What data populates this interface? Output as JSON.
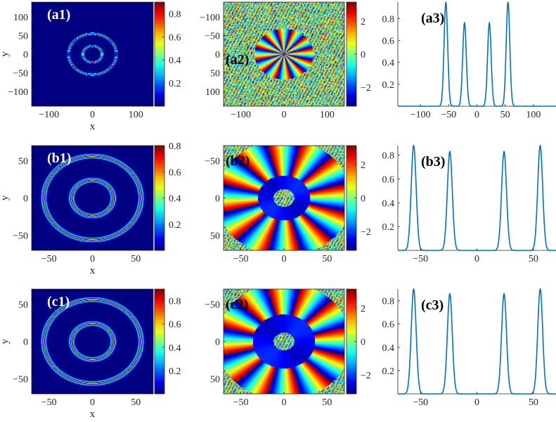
{
  "figure": {
    "rows": [
      "a",
      "b",
      "c"
    ]
  },
  "chart_data": [
    {
      "id": "a1",
      "type": "heatmap",
      "label": "(a1)",
      "xlabel": "x",
      "ylabel": "y",
      "xlim": [
        -140,
        140
      ],
      "ylim": [
        -140,
        140
      ],
      "y_reversed": false,
      "xticks": [
        -100,
        0,
        100
      ],
      "yticks": [
        100,
        50,
        0,
        -50,
        -100
      ],
      "colorbar": {
        "range": [
          0,
          0.9
        ],
        "ticks": [
          0.2,
          0.4,
          0.6,
          0.8
        ]
      },
      "rings": [
        {
          "r": 22,
          "amp": 0.9
        },
        {
          "r": 55,
          "amp": 0.9
        }
      ],
      "grid": false
    },
    {
      "id": "a2",
      "type": "heatmap",
      "label": "(a2)",
      "xlabel": "",
      "ylabel": "",
      "xlim": [
        -140,
        140
      ],
      "ylim": [
        -140,
        140
      ],
      "y_reversed": true,
      "xticks": [
        -100,
        0,
        100
      ],
      "yticks": [
        -100,
        -50,
        0,
        50,
        100
      ],
      "colorbar": {
        "range": [
          -3.14,
          3.14
        ],
        "ticks": [
          2,
          0,
          -2
        ]
      },
      "phase": {
        "sectors": 12,
        "disk_radius": 68,
        "noise": "outside"
      },
      "grid": false
    },
    {
      "id": "a3",
      "type": "line",
      "label": "(a3)",
      "xlabel": "",
      "ylabel": "",
      "xlim": [
        -140,
        140
      ],
      "ylim": [
        0,
        0.95
      ],
      "xticks": [
        -100,
        -50,
        0,
        50,
        100
      ],
      "yticks": [
        0.2,
        0.4,
        0.6,
        0.8
      ],
      "peaks": [
        {
          "x": -55,
          "amp": 0.95
        },
        {
          "x": -22,
          "amp": 0.76
        },
        {
          "x": 22,
          "amp": 0.76
        },
        {
          "x": 55,
          "amp": 0.95
        }
      ],
      "peak_width": 3.2,
      "grid": false
    },
    {
      "id": "b1",
      "type": "heatmap",
      "label": "(b1)",
      "xlabel": "x",
      "ylabel": "y",
      "xlim": [
        -70,
        70
      ],
      "ylim": [
        -70,
        70
      ],
      "y_reversed": false,
      "xticks": [
        -50,
        0,
        50
      ],
      "yticks": [
        50,
        0,
        -50
      ],
      "colorbar": {
        "range": [
          0,
          0.8
        ],
        "ticks": [
          0.2,
          0.4,
          0.6,
          0.8
        ]
      },
      "rings": [
        {
          "r": 24,
          "amp": 0.8
        },
        {
          "r": 56,
          "amp": 0.8
        }
      ],
      "grid": false
    },
    {
      "id": "b2",
      "type": "heatmap",
      "label": "(b2)",
      "xlabel": "",
      "ylabel": "",
      "xlim": [
        -70,
        70
      ],
      "ylim": [
        -70,
        70
      ],
      "y_reversed": true,
      "xticks": [
        -50,
        0,
        50
      ],
      "yticks": [
        -50,
        0,
        50
      ],
      "colorbar": {
        "range": [
          -3.14,
          3.14
        ],
        "ticks": [
          2,
          0,
          -2
        ]
      },
      "phase": {
        "sectors": 12,
        "inner_radius": 30,
        "outer_radius": 78,
        "core_radius": 12,
        "noise": "core"
      },
      "grid": false
    },
    {
      "id": "b3",
      "type": "line",
      "label": "(b3)",
      "xlabel": "",
      "ylabel": "",
      "xlim": [
        -70,
        70
      ],
      "ylim": [
        0,
        0.88
      ],
      "xticks": [
        -50,
        0,
        50
      ],
      "yticks": [
        0.2,
        0.4,
        0.6,
        0.8
      ],
      "peaks": [
        {
          "x": -56,
          "amp": 0.88
        },
        {
          "x": -24,
          "amp": 0.83
        },
        {
          "x": 24,
          "amp": 0.83
        },
        {
          "x": 56,
          "amp": 0.88
        }
      ],
      "peak_width": 2.2,
      "grid": false
    },
    {
      "id": "c1",
      "type": "heatmap",
      "label": "(c1)",
      "xlabel": "x",
      "ylabel": "y",
      "xlim": [
        -70,
        70
      ],
      "ylim": [
        -70,
        70
      ],
      "y_reversed": false,
      "xticks": [
        -50,
        0,
        50
      ],
      "yticks": [
        50,
        0,
        -50
      ],
      "colorbar": {
        "range": [
          0,
          0.9
        ],
        "ticks": [
          0.2,
          0.4,
          0.6,
          0.8
        ]
      },
      "rings": [
        {
          "r": 24,
          "amp": 0.9
        },
        {
          "r": 56,
          "amp": 0.9
        }
      ],
      "grid": false
    },
    {
      "id": "c2",
      "type": "heatmap",
      "label": "(c2)",
      "xlabel": "",
      "ylabel": "",
      "xlim": [
        -70,
        70
      ],
      "ylim": [
        -70,
        70
      ],
      "y_reversed": true,
      "xticks": [
        -50,
        0,
        50
      ],
      "yticks": [
        -50,
        0,
        50
      ],
      "colorbar": {
        "range": [
          -3.14,
          3.14
        ],
        "ticks": [
          2,
          0,
          -2
        ]
      },
      "phase": {
        "sectors": 12,
        "inner_radius": 36,
        "outer_radius": 78,
        "core_radius": 12,
        "noise": "core"
      },
      "grid": false
    },
    {
      "id": "c3",
      "type": "line",
      "label": "(c3)",
      "xlabel": "",
      "ylabel": "",
      "xlim": [
        -70,
        70
      ],
      "ylim": [
        0,
        0.9
      ],
      "xticks": [
        -50,
        0,
        50
      ],
      "yticks": [
        0.2,
        0.4,
        0.6,
        0.8
      ],
      "peaks": [
        {
          "x": -56,
          "amp": 0.9
        },
        {
          "x": -24,
          "amp": 0.86
        },
        {
          "x": 24,
          "amp": 0.86
        },
        {
          "x": 56,
          "amp": 0.9
        }
      ],
      "peak_width": 2.2,
      "grid": false
    }
  ],
  "colors": {
    "line": "#0072bd",
    "axis": "#262626",
    "label_white": "#ffffff",
    "label_black": "#000000",
    "colormap": "jet"
  }
}
